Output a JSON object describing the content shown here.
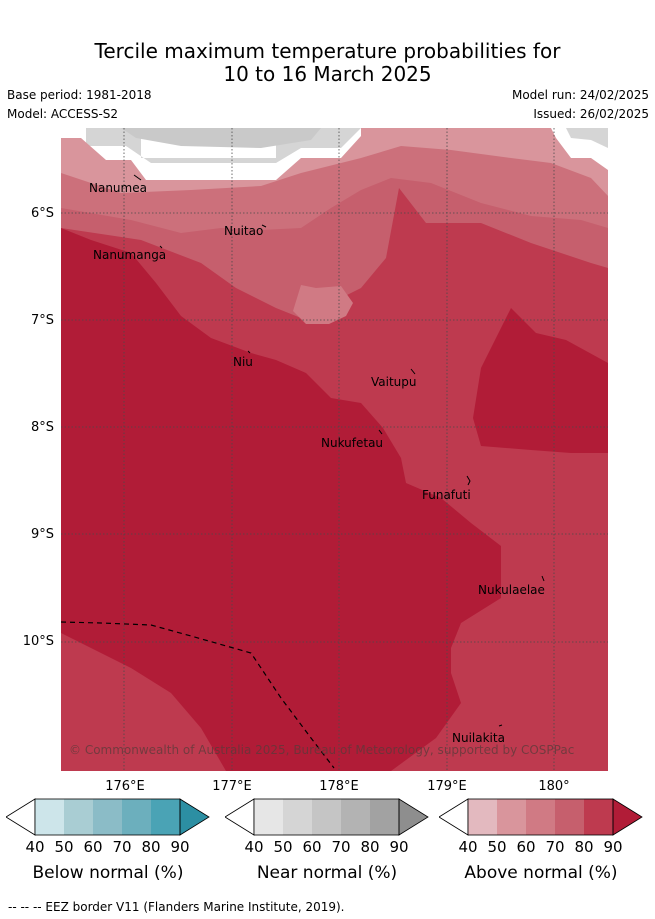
{
  "title_line1": "Tercile maximum temperature probabilities for",
  "title_line2": "10 to 16 March 2025",
  "base_period": "Base period: 1981-2018",
  "model": "Model: ACCESS-S2",
  "model_run": "Model run: 24/02/2025",
  "issued": "Issued: 26/02/2025",
  "lat_labels": [
    "6°S",
    "7°S",
    "8°S",
    "9°S",
    "10°S"
  ],
  "lon_labels": [
    "176°E",
    "177°E",
    "178°E",
    "179°E",
    "180°"
  ],
  "places": [
    "Nanumea",
    "Nuitao",
    "Nanumanga",
    "Niu",
    "Vaitupu",
    "Nukufetau",
    "Funafuti",
    "Nukulaelae",
    "Nuilakita"
  ],
  "copyright": "© Commonwealth of Australia 2025, Bureau of Meteorology, supported by COSPPac",
  "colorbars": [
    {
      "title": "Below normal (%)",
      "ticks": [
        "40",
        "50",
        "60",
        "70",
        "80",
        "90"
      ],
      "colors": [
        "#cde5ea",
        "#a9cdd3",
        "#8bbcc7",
        "#6cafbd",
        "#4aa3b5",
        "#2c8fa3"
      ]
    },
    {
      "title": "Near normal (%)",
      "ticks": [
        "40",
        "50",
        "60",
        "70",
        "80",
        "90"
      ],
      "colors": [
        "#e6e6e6",
        "#d5d5d5",
        "#c5c5c5",
        "#b3b3b3",
        "#a2a2a2",
        "#8e8e8e"
      ]
    },
    {
      "title": "Above normal (%)",
      "ticks": [
        "40",
        "50",
        "60",
        "70",
        "80",
        "90"
      ],
      "colors": [
        "#e3b9bf",
        "#d9959c",
        "#d07a84",
        "#c65f6d",
        "#be3a4f",
        "#b11c37"
      ]
    }
  ],
  "footer": "-- -- -- EEZ border V11 (Flanders Marine Institute, 2019)."
}
